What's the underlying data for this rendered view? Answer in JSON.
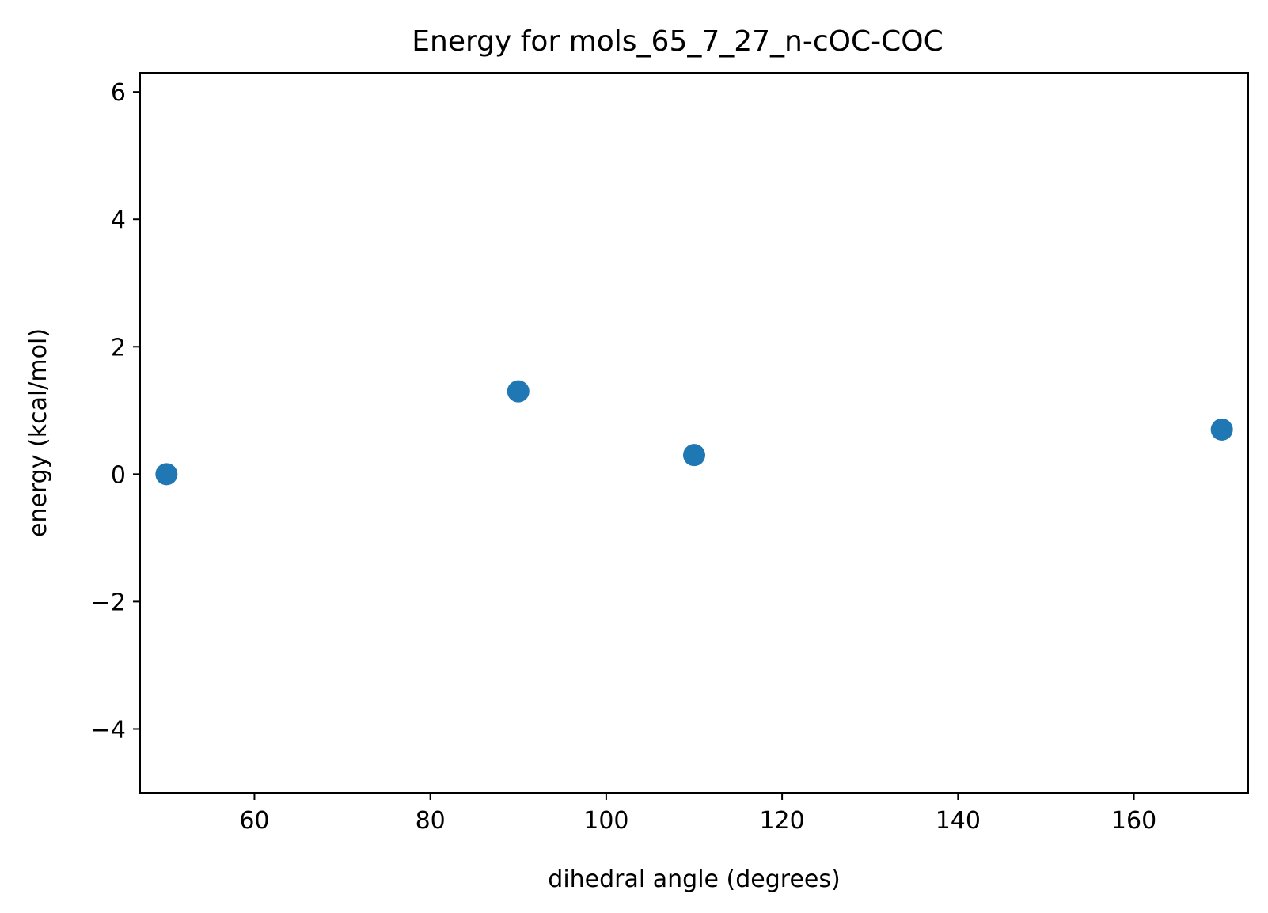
{
  "chart_data": {
    "type": "scatter",
    "title": "Energy for mols_65_7_27_n-cOC-COC",
    "xlabel": "dihedral angle (degrees)",
    "ylabel": "energy (kcal/mol)",
    "xlim": [
      47,
      173
    ],
    "ylim": [
      -5,
      6.3
    ],
    "xticks": [
      60,
      80,
      100,
      120,
      140,
      160
    ],
    "xtick_labels": [
      "60",
      "80",
      "100",
      "120",
      "140",
      "160"
    ],
    "yticks": [
      -4,
      -2,
      0,
      2,
      4,
      6
    ],
    "ytick_labels": [
      "−4",
      "−2",
      "0",
      "2",
      "4",
      "6"
    ],
    "grid": false,
    "legend": false,
    "marker_color": "#1f77b4",
    "points": [
      {
        "x": 50,
        "y": 0.0
      },
      {
        "x": 90,
        "y": 1.3
      },
      {
        "x": 110,
        "y": 0.3
      },
      {
        "x": 170,
        "y": 0.7
      }
    ]
  }
}
